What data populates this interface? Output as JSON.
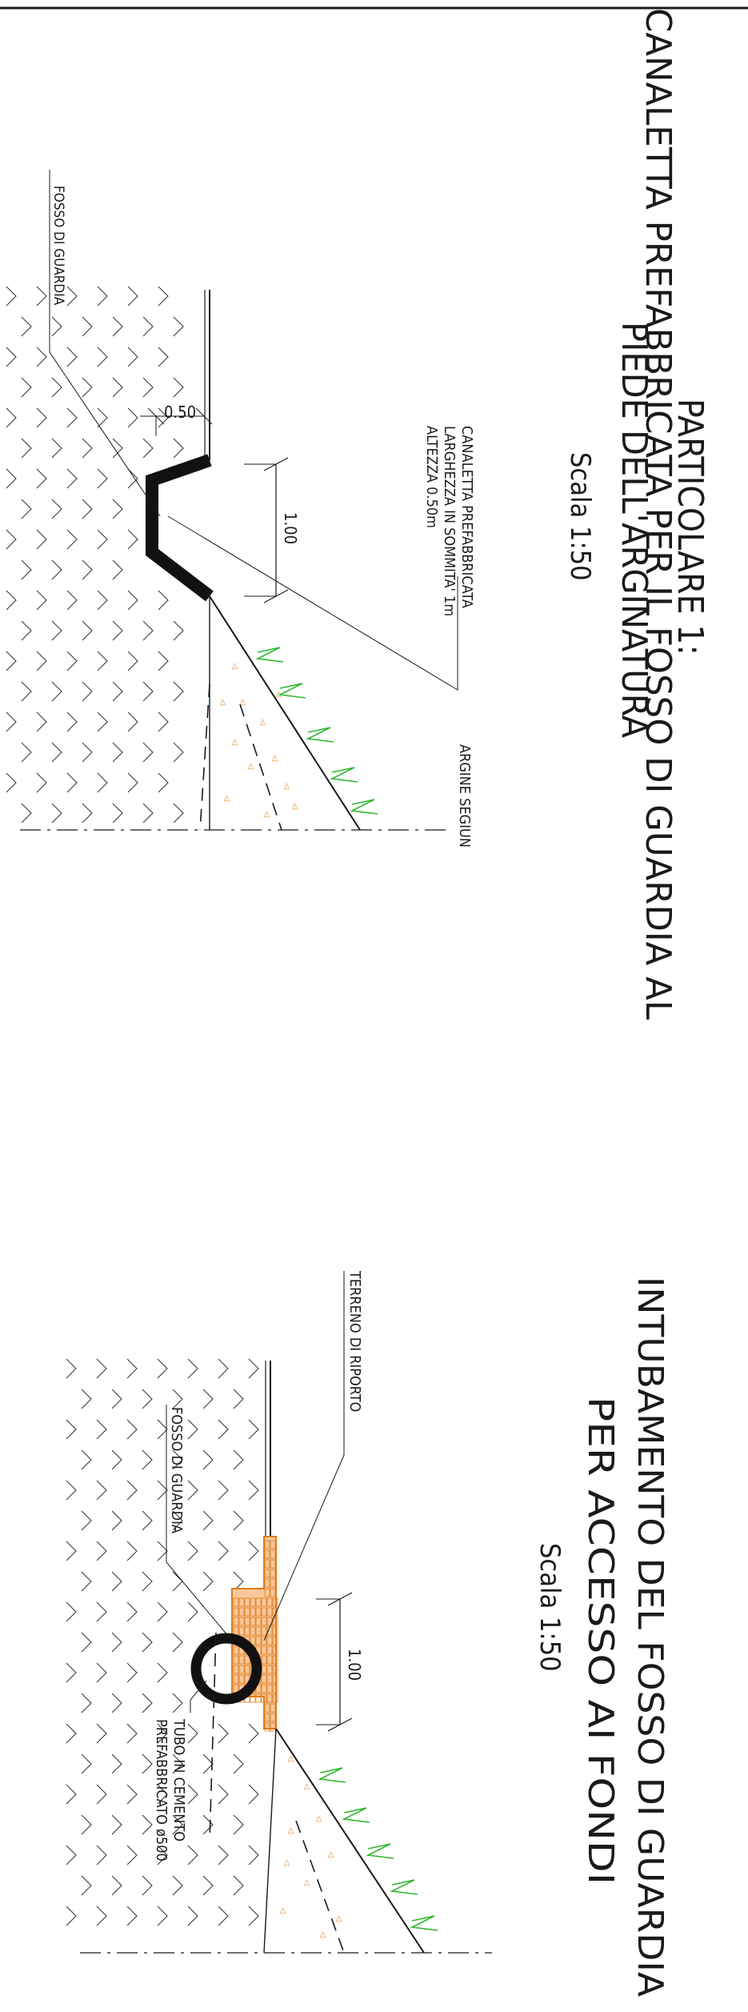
{
  "colors": {
    "ink": "#1a1a1a",
    "grass": "#2db82d",
    "fill_orange": "#e07a1a",
    "fill_bg": "#f7c79a"
  },
  "detail1": {
    "title_line1": "PARTICOLARE 1:",
    "title_line2": "CANALETTA PREFABBRICATA PER IL FOSSO DI GUARDIA AL",
    "title_line3": "PIEDE DELL'ARGINATURA",
    "scale": "Scala 1:50",
    "label_fosso": "FOSSO DI GUARDIA",
    "dim_width": "0.50",
    "dim_height": "1.00",
    "note_line1": "CANALETTA PREFABBRICATA",
    "note_line2": "LARGHEZZA IN SOMMITA' 1m",
    "note_line3": "ALTEZZA 0.50m",
    "label_argine": "ARGINE SEGIUN"
  },
  "detail2": {
    "title_line1": "INTUBAMENTO DEL FOSSO DI GUARDIA",
    "title_line2": "PER ACCESSO AI FONDI",
    "scale": "Scala 1:50",
    "label_terreno": "TERRENO DI RIPORTO",
    "label_fosso": "FOSSO DI GUARDIA",
    "dim_height": "1.00",
    "note_line1": "TUBO IN CEMENTO",
    "note_line2": "PREFABBRICATO ø500"
  }
}
